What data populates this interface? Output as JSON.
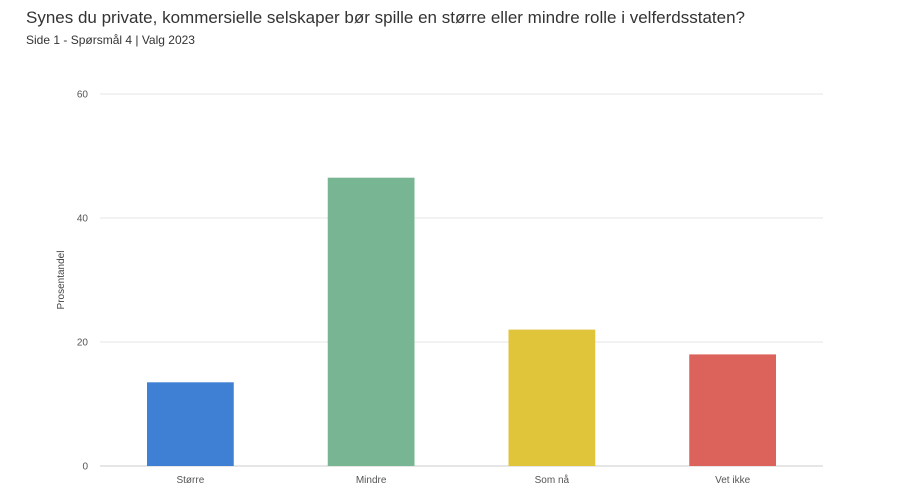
{
  "chart_data": {
    "type": "bar",
    "title": "Synes du private, kommersielle selskaper bør spille en større eller mindre rolle i velferdsstaten?",
    "subtitle": "Side 1 - Spørsmål 4 | Valg 2023",
    "xlabel": "",
    "ylabel": "Prosentandel",
    "categories": [
      "Større",
      "Mindre",
      "Som nå",
      "Vet ikke"
    ],
    "values": [
      13.5,
      46.5,
      22.0,
      18.0
    ],
    "colors": [
      "#3f7fd4",
      "#78b592",
      "#e0c43a",
      "#dc625c"
    ],
    "ylim": [
      0,
      60
    ],
    "yticks": [
      0,
      20,
      40,
      60
    ],
    "grid": true,
    "legend": "none"
  }
}
